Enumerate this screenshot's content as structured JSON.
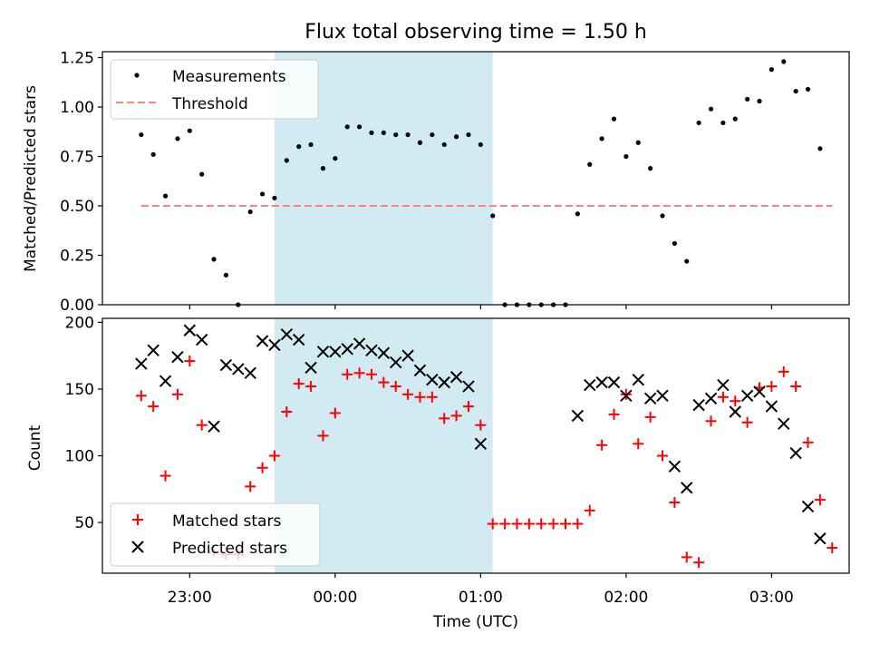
{
  "chart_data": [
    {
      "type": "scatter",
      "title": "Flux total observing time = 1.50 h",
      "ylabel": "Matched/Predicted stars",
      "xlabel": "",
      "ylim": [
        0,
        1.28
      ],
      "yticks": [
        "0.00",
        "0.25",
        "0.50",
        "0.75",
        "1.00",
        "1.25"
      ],
      "ytick_values": [
        0,
        0.25,
        0.5,
        0.75,
        1.0,
        1.25
      ],
      "highlight_range": [
        "23:35",
        "01:05"
      ],
      "legend": {
        "placement": "upper-left",
        "entries": [
          "Measurements",
          "Threshold"
        ]
      },
      "threshold": {
        "name": "Threshold",
        "value": 0.5,
        "x_start": "22:40",
        "x_end": "03:25"
      },
      "series": [
        {
          "name": "Measurements",
          "x": [
            "22:40",
            "22:45",
            "22:50",
            "22:55",
            "23:00",
            "23:05",
            "23:10",
            "23:15",
            "23:20",
            "23:25",
            "23:30",
            "23:35",
            "23:40",
            "23:45",
            "23:50",
            "23:55",
            "00:00",
            "00:05",
            "00:10",
            "00:15",
            "00:20",
            "00:25",
            "00:30",
            "00:35",
            "00:40",
            "00:45",
            "00:50",
            "00:55",
            "01:00",
            "01:05",
            "01:10",
            "01:15",
            "01:20",
            "01:25",
            "01:30",
            "01:35",
            "01:40",
            "01:45",
            "01:50",
            "01:55",
            "02:00",
            "02:05",
            "02:10",
            "02:15",
            "02:20",
            "02:25",
            "02:30",
            "02:35",
            "02:40",
            "02:45",
            "02:50",
            "02:55",
            "03:00",
            "03:05",
            "03:10",
            "03:15",
            "03:20",
            "03:25"
          ],
          "y": [
            0.86,
            0.76,
            0.55,
            0.84,
            0.88,
            0.66,
            0.23,
            0.15,
            0.0,
            0.47,
            0.56,
            0.54,
            0.73,
            0.8,
            0.81,
            0.69,
            0.74,
            0.9,
            0.9,
            0.87,
            0.87,
            0.86,
            0.86,
            0.82,
            0.86,
            0.81,
            0.85,
            0.86,
            0.81,
            0.45,
            0.0,
            0.0,
            0.0,
            0.0,
            0.0,
            0.0,
            0.46,
            0.71,
            0.84,
            0.94,
            0.75,
            0.82,
            0.69,
            0.45,
            0.31,
            0.22,
            0.92,
            0.99,
            0.92,
            0.94,
            1.04,
            1.03,
            1.19,
            1.23,
            1.08,
            1.09,
            0.79,
            null
          ]
        }
      ]
    },
    {
      "type": "scatter",
      "title": "",
      "ylabel": "Count",
      "xlabel": "Time (UTC)",
      "ylim": [
        12,
        203
      ],
      "yticks": [
        "50",
        "100",
        "150",
        "200"
      ],
      "ytick_values": [
        50,
        100,
        150,
        200
      ],
      "xticks": [
        "23:00",
        "00:00",
        "01:00",
        "02:00",
        "03:00"
      ],
      "xtick_values": [
        "23:00",
        "00:00",
        "01:00",
        "02:00",
        "03:00"
      ],
      "xlim": [
        "22:24",
        "03:32"
      ],
      "highlight_range": [
        "23:35",
        "01:05"
      ],
      "legend": {
        "placement": "lower-left",
        "entries": [
          "Matched stars",
          "Predicted stars"
        ]
      },
      "series": [
        {
          "name": "Matched stars",
          "color": "#ff0000",
          "marker": "plus",
          "x": [
            "22:40",
            "22:45",
            "22:50",
            "22:55",
            "23:00",
            "23:05",
            "23:10",
            "23:15",
            "23:20",
            "23:25",
            "23:30",
            "23:35",
            "23:40",
            "23:45",
            "23:50",
            "23:55",
            "00:00",
            "00:05",
            "00:10",
            "00:15",
            "00:20",
            "00:25",
            "00:30",
            "00:35",
            "00:40",
            "00:45",
            "00:50",
            "00:55",
            "01:00",
            "01:05",
            "01:10",
            "01:15",
            "01:20",
            "01:25",
            "01:30",
            "01:35",
            "01:40",
            "01:45",
            "01:50",
            "01:55",
            "02:00",
            "02:05",
            "02:10",
            "02:15",
            "02:20",
            "02:25",
            "02:30",
            "02:35",
            "02:40",
            "02:45",
            "02:50",
            "02:55",
            "03:00",
            "03:05",
            "03:10",
            "03:15",
            "03:20",
            "03:25"
          ],
          "y": [
            145,
            137,
            85,
            146,
            171,
            123,
            28,
            26,
            26,
            77,
            91,
            100,
            133,
            154,
            152,
            115,
            132,
            161,
            162,
            161,
            155,
            152,
            146,
            144,
            144,
            128,
            130,
            137,
            123,
            49,
            49,
            49,
            49,
            49,
            49,
            49,
            49,
            59,
            108,
            131,
            146,
            109,
            129,
            100,
            65,
            24,
            20,
            126,
            144,
            141,
            125,
            151,
            152,
            163,
            152,
            110,
            67,
            31
          ]
        },
        {
          "name": "Predicted stars",
          "color": "#000000",
          "marker": "x",
          "x": [
            "22:40",
            "22:45",
            "22:50",
            "22:55",
            "23:00",
            "23:05",
            "23:10",
            "23:15",
            "23:20",
            "23:25",
            "23:30",
            "23:35",
            "23:40",
            "23:45",
            "23:50",
            "23:55",
            "00:00",
            "00:05",
            "00:10",
            "00:15",
            "00:20",
            "00:25",
            "00:30",
            "00:35",
            "00:40",
            "00:45",
            "00:50",
            "00:55",
            "01:00",
            "01:05",
            "01:10",
            "01:15",
            "01:20",
            "01:25",
            "01:30",
            "01:35",
            "01:40",
            "01:45",
            "01:50",
            "01:55",
            "02:00",
            "02:05",
            "02:10",
            "02:15",
            "02:20",
            "02:25",
            "02:30",
            "02:35",
            "02:40",
            "02:45",
            "02:50",
            "02:55",
            "03:00",
            "03:05",
            "03:10",
            "03:15",
            "03:20",
            "03:25"
          ],
          "y": [
            169,
            179,
            156,
            174,
            194,
            187,
            122,
            168,
            165,
            162,
            186,
            183,
            191,
            187,
            166,
            178,
            178,
            180,
            184,
            179,
            177,
            170,
            175,
            164,
            157,
            155,
            159,
            152,
            109,
            null,
            null,
            null,
            null,
            null,
            null,
            null,
            130,
            153,
            155,
            155,
            145,
            157,
            143,
            145,
            92,
            76,
            138,
            143,
            153,
            133,
            145,
            148,
            137,
            124,
            102,
            62,
            38,
            null
          ]
        }
      ]
    }
  ]
}
